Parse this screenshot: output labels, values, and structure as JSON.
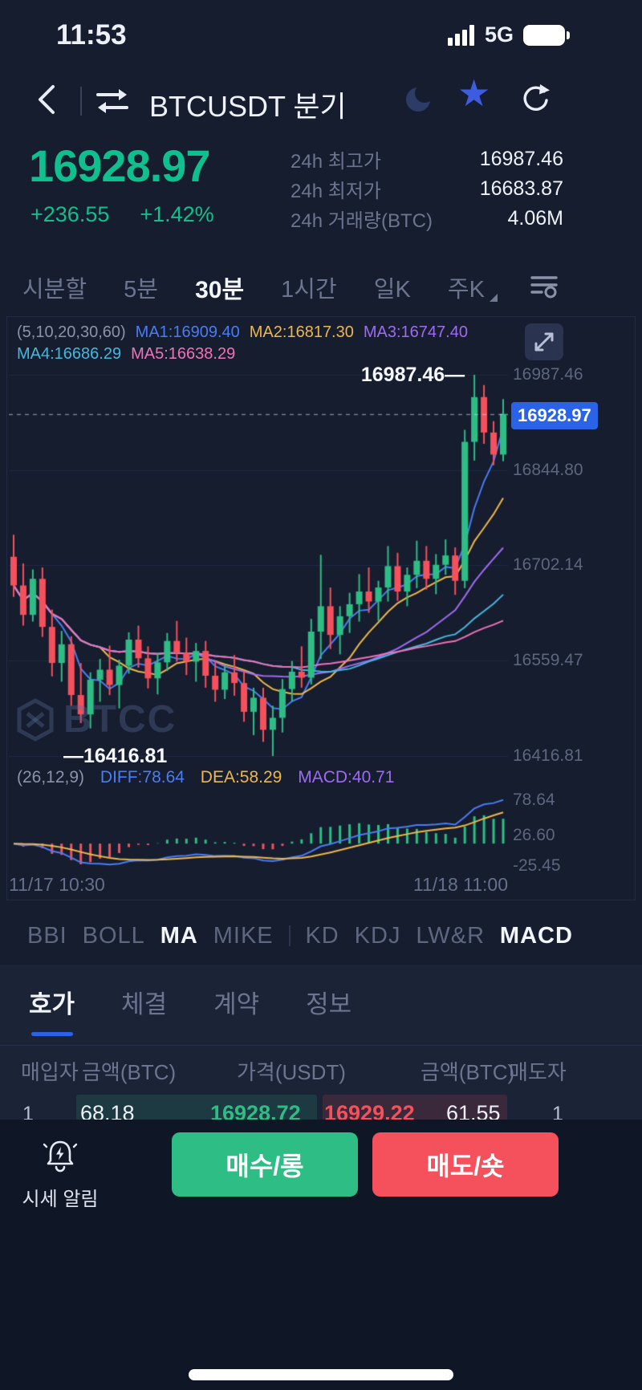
{
  "status_bar": {
    "time": "11:53",
    "network": "5G"
  },
  "header": {
    "title": "BTCUSDT 분기"
  },
  "ticker": {
    "last_price": "16928.97",
    "change_abs": "+236.55",
    "change_pct": "+1.42%",
    "stats": [
      {
        "label": "24h 최고가",
        "value": "16987.46"
      },
      {
        "label": "24h 최저가",
        "value": "16683.87"
      },
      {
        "label": "24h 거래량(BTC)",
        "value": "4.06M"
      }
    ]
  },
  "timeframe_tabs": {
    "items": [
      "시분할",
      "5분",
      "30분",
      "1시간",
      "일K",
      "주K"
    ],
    "active": "30분",
    "dropdown_item": "주K"
  },
  "chart_data": {
    "type": "candlestick",
    "overlay": {
      "params": "(5,10,20,30,60)",
      "mas": [
        {
          "label": "MA1:16909.40",
          "period": 5,
          "color": "#4a7cf5"
        },
        {
          "label": "MA2:16817.30",
          "period": 10,
          "color": "#efb74a"
        },
        {
          "label": "MA3:16747.40",
          "period": 20,
          "color": "#9e6bf2"
        },
        {
          "label": "MA4:16686.29",
          "period": 30,
          "color": "#45b8e0"
        },
        {
          "label": "MA5:16638.29",
          "period": 60,
          "color": "#ef72bb"
        }
      ]
    },
    "y_ticks": [
      "16987.46",
      "16844.80",
      "16702.14",
      "16559.47",
      "16416.81"
    ],
    "current_price": "16928.97",
    "high_annotation": "16987.46—",
    "low_annotation": "—16416.81",
    "x_labels": [
      "11/17 10:30",
      "11/18 11:00"
    ],
    "price_min": 16406,
    "price_max": 16997,
    "colors": {
      "up": "#2ebd85",
      "down": "#f4515c"
    },
    "watermark": "BTCC",
    "candles": [
      [
        16715,
        16748,
        16655,
        16672
      ],
      [
        16672,
        16705,
        16612,
        16628
      ],
      [
        16628,
        16696,
        16618,
        16682
      ],
      [
        16682,
        16699,
        16595,
        16610
      ],
      [
        16610,
        16636,
        16536,
        16556
      ],
      [
        16556,
        16604,
        16528,
        16584
      ],
      [
        16584,
        16596,
        16492,
        16508
      ],
      [
        16508,
        16556,
        16466,
        16479
      ],
      [
        16479,
        16542,
        16458,
        16531
      ],
      [
        16531,
        16562,
        16498,
        16546
      ],
      [
        16546,
        16582,
        16508,
        16523
      ],
      [
        16523,
        16561,
        16488,
        16552
      ],
      [
        16552,
        16602,
        16540,
        16591
      ],
      [
        16591,
        16612,
        16549,
        16563
      ],
      [
        16563,
        16581,
        16518,
        16533
      ],
      [
        16533,
        16571,
        16509,
        16557
      ],
      [
        16557,
        16601,
        16544,
        16589
      ],
      [
        16589,
        16619,
        16558,
        16571
      ],
      [
        16571,
        16594,
        16538,
        16558
      ],
      [
        16558,
        16586,
        16528,
        16574
      ],
      [
        16574,
        16589,
        16519,
        16537
      ],
      [
        16537,
        16558,
        16498,
        16516
      ],
      [
        16516,
        16553,
        16502,
        16542
      ],
      [
        16542,
        16568,
        16507,
        16526
      ],
      [
        16526,
        16544,
        16468,
        16483
      ],
      [
        16483,
        16519,
        16448,
        16504
      ],
      [
        16504,
        16519,
        16438,
        16456
      ],
      [
        16456,
        16492,
        16416.81,
        16474
      ],
      [
        16474,
        16532,
        16452,
        16517
      ],
      [
        16517,
        16559,
        16498,
        16543
      ],
      [
        16543,
        16581,
        16519,
        16534
      ],
      [
        16534,
        16622,
        16524,
        16603
      ],
      [
        16603,
        16718,
        16562,
        16641
      ],
      [
        16641,
        16669,
        16577,
        16598
      ],
      [
        16598,
        16641,
        16569,
        16626
      ],
      [
        16626,
        16661,
        16601,
        16644
      ],
      [
        16644,
        16689,
        16618,
        16663
      ],
      [
        16663,
        16699,
        16631,
        16648
      ],
      [
        16648,
        16679,
        16619,
        16669
      ],
      [
        16669,
        16731,
        16648,
        16701
      ],
      [
        16701,
        16721,
        16649,
        16663
      ],
      [
        16663,
        16699,
        16641,
        16688
      ],
      [
        16688,
        16739,
        16668,
        16709
      ],
      [
        16709,
        16731,
        16666,
        16682
      ],
      [
        16682,
        16719,
        16659,
        16703
      ],
      [
        16703,
        16741,
        16688,
        16717
      ],
      [
        16717,
        16729,
        16658,
        16679
      ],
      [
        16679,
        16905,
        16668,
        16887
      ],
      [
        16887,
        16987.46,
        16859,
        16954
      ],
      [
        16954,
        16972,
        16884,
        16901
      ],
      [
        16901,
        16918,
        16852,
        16868
      ],
      [
        16868,
        16951,
        16858,
        16928.97
      ]
    ],
    "macd": {
      "params": "(26,12,9)",
      "diff": "DIFF:78.64",
      "dea": "DEA:58.29",
      "macd": "MACD:40.71",
      "y_ticks": [
        "78.64",
        "26.60",
        "-25.45"
      ],
      "colors": {
        "diff": "#4a7cf5",
        "dea": "#efb74a",
        "macd_label": "#9e6bf2"
      }
    }
  },
  "indicator_tabs": {
    "main": [
      "BBI",
      "BOLL",
      "MA",
      "MIKE"
    ],
    "sub": [
      "KD",
      "KDJ",
      "LW&R",
      "MACD"
    ],
    "active": [
      "MA",
      "MACD"
    ]
  },
  "orderbook": {
    "tabs": [
      "호가",
      "체결",
      "계약",
      "정보"
    ],
    "active_tab": "호가",
    "columns": [
      "매입자",
      "금액(BTC)",
      "가격(USDT)",
      "금액(BTC)",
      "매도자"
    ],
    "row": {
      "buyer_count": "1",
      "buy_amount": "68.18",
      "bid_price": "16928.72",
      "ask_price": "16929.22",
      "sell_amount": "61.55",
      "seller_count": "1"
    }
  },
  "bottom_bar": {
    "alert_label": "시세 알림",
    "buy_label": "매수/롱",
    "sell_label": "매도/숏"
  }
}
